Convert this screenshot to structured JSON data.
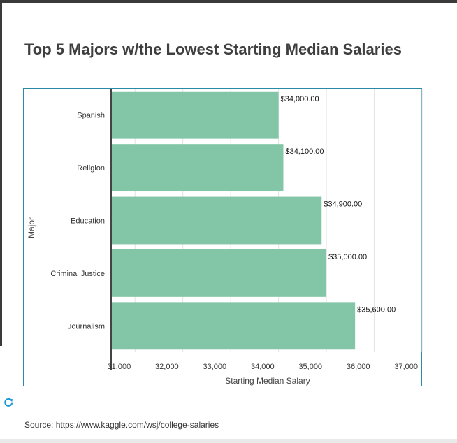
{
  "page": {
    "title": "Top 5 Majors w/the Lowest Starting Median Salaries",
    "source": "Source: https://www.kaggle.com/wsj/college-salaries"
  },
  "icons": {
    "refresh": "refresh-icon"
  },
  "colors": {
    "bar": "#83c6a7",
    "frame": "#2a8aa6",
    "refresh": "#1a9ad6"
  },
  "chart_data": {
    "type": "bar",
    "orientation": "horizontal",
    "categories": [
      "Spanish",
      "Religion",
      "Education",
      "Criminal Justice",
      "Journalism"
    ],
    "values": [
      34000,
      34100,
      34900,
      35000,
      35600
    ],
    "value_labels": [
      "$34,000.00",
      "$34,100.00",
      "$34,900.00",
      "$35,000.00",
      "$35,600.00"
    ],
    "xlabel": "Starting Median Salary",
    "ylabel": "Major",
    "xlim": [
      30500,
      37000
    ],
    "xticks": [
      31000,
      32000,
      33000,
      34000,
      35000,
      36000,
      37000
    ],
    "xtick_labels": [
      "31,000",
      "32,000",
      "33,000",
      "34,000",
      "35,000",
      "36,000",
      "37,000"
    ],
    "grid": "vertical",
    "legend": "none"
  }
}
